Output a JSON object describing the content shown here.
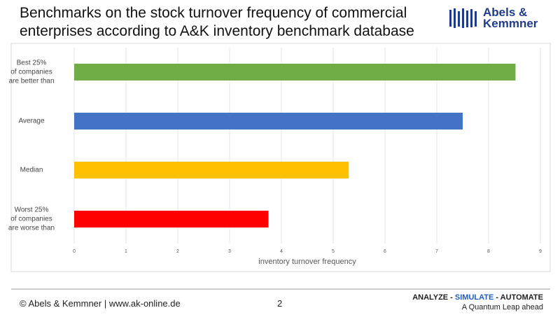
{
  "header": {
    "title": "Benchmarks on the stock turnover frequency of commercial enterprises according to A&K inventory benchmark database",
    "logo": [
      "Abels &",
      "Kemmner"
    ]
  },
  "chart_data": {
    "type": "barh",
    "categories": [
      "Best 25%\nof companies\nare better than",
      "Average",
      "Median",
      "Worst 25%\nof companies\nare worse than"
    ],
    "values": [
      8.52,
      7.5,
      5.3,
      3.75
    ],
    "colors": [
      "#70ad47",
      "#4472c4",
      "#ffc000",
      "#ff0000"
    ],
    "xlabel": "inventory turnover frequency",
    "xlim": [
      0,
      9
    ],
    "xticks": [
      0,
      1,
      2,
      3,
      4,
      5,
      6,
      7,
      8,
      9
    ],
    "grid": true
  },
  "footer": {
    "copyright": "© Abels & Kemmner | www.ak-online.de",
    "page": 2,
    "tagline": [
      "ANALYZE - ",
      "SIMULATE",
      " - AUTOMATE"
    ],
    "slogan": "A Quantum Leap ahead"
  }
}
